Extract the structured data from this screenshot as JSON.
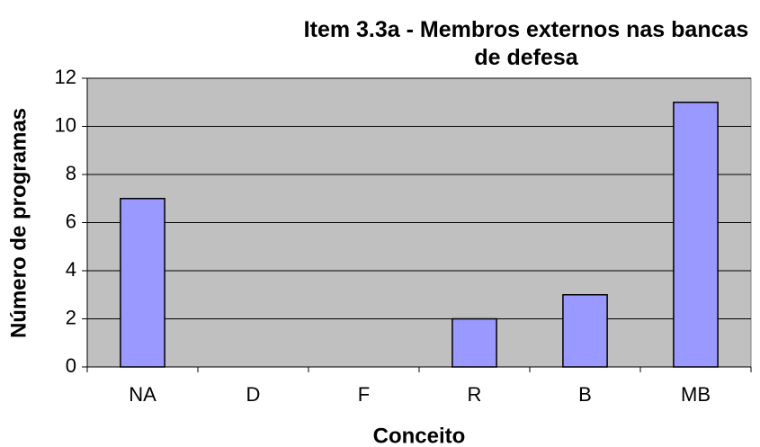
{
  "chart_data": {
    "type": "bar",
    "title": "Item 3.3a - Membros externos nas bancas de defesa",
    "x_label": "Conceito",
    "y_label": "Número de programas",
    "categories": [
      "NA",
      "D",
      "F",
      "R",
      "B",
      "MB"
    ],
    "values": [
      7,
      0,
      0,
      2,
      3,
      11
    ],
    "color": "#9999ff",
    "ylim": [
      0,
      12
    ],
    "yticks": [
      0,
      2,
      4,
      6,
      8,
      10,
      12
    ],
    "grid": true
  }
}
